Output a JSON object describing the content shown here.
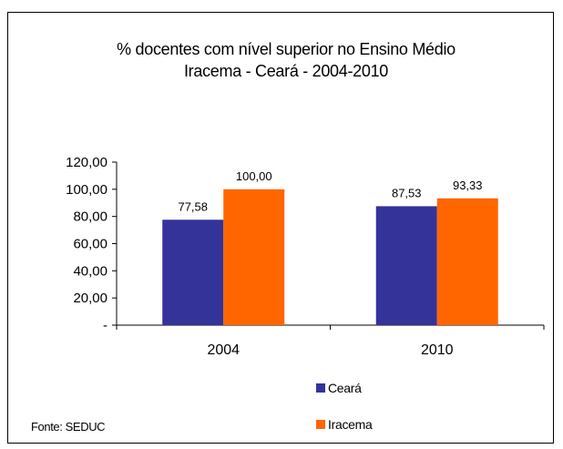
{
  "chart_data": {
    "type": "bar",
    "title": "% docentes com nível  superior no Ensino Médio",
    "subtitle": "Iracema  -  Ceará - 2004-2010",
    "categories": [
      "2004",
      "2010"
    ],
    "series": [
      {
        "name": "Ceará",
        "values": [
          77.58,
          87.53
        ],
        "labels": [
          "77,58",
          "87,53"
        ],
        "color": "#333399"
      },
      {
        "name": "Iracema",
        "values": [
          100.0,
          93.33
        ],
        "labels": [
          "100,00",
          "93,33"
        ],
        "color": "#FF6600"
      }
    ],
    "ylim": [
      0,
      120
    ],
    "yticks": [
      {
        "value": 120,
        "label": "120,00"
      },
      {
        "value": 100,
        "label": "100,00"
      },
      {
        "value": 80,
        "label": "80,00"
      },
      {
        "value": 60,
        "label": "60,00"
      },
      {
        "value": 40,
        "label": "40,00"
      },
      {
        "value": 20,
        "label": "20,00"
      },
      {
        "value": 0,
        "label": "-"
      }
    ],
    "grid": false,
    "legend_position": "bottom-center"
  },
  "source_note": "Fonte: SEDUC"
}
